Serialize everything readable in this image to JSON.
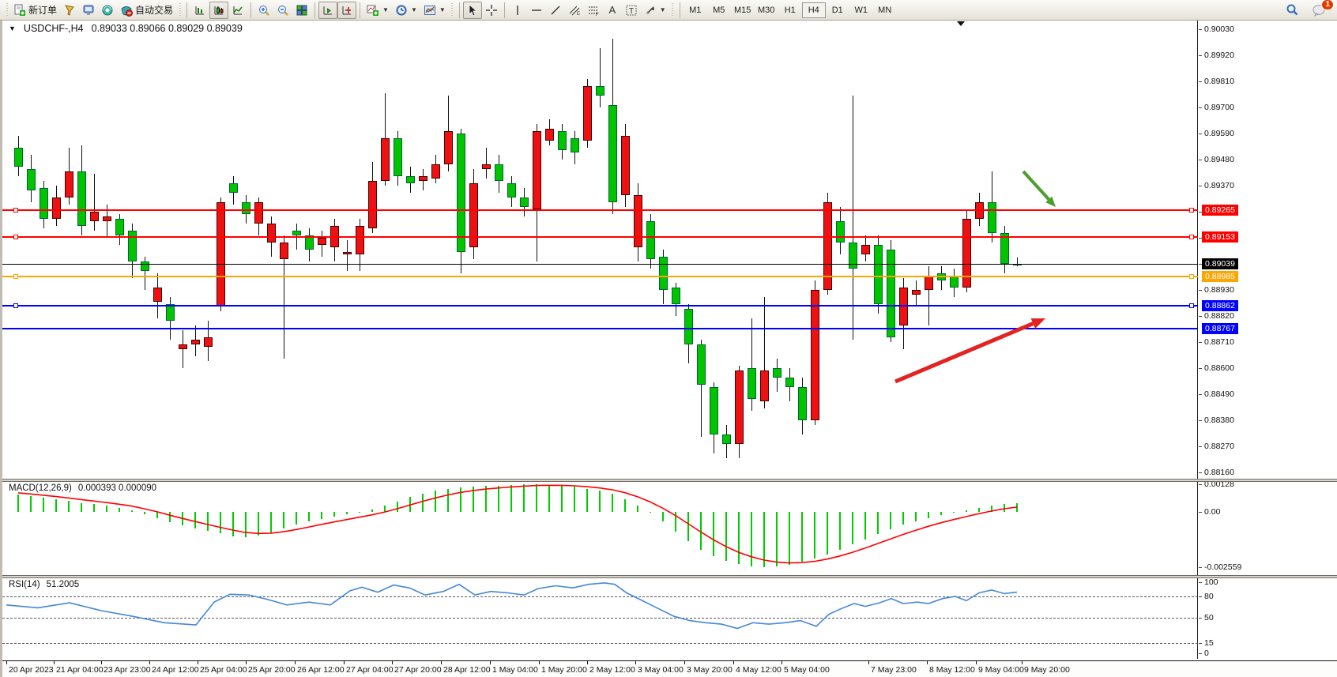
{
  "toolbar": {
    "new_order_label": "新订单",
    "auto_trading_label": "自动交易",
    "timeframes": [
      "M1",
      "M5",
      "M15",
      "M30",
      "H1",
      "H4",
      "D1",
      "W1",
      "MN"
    ],
    "active_timeframe": "H4",
    "notification_count": "1"
  },
  "chart": {
    "symbol_period": "USDCHF-,H4",
    "ohlc_text": "0.89033 0.89066 0.89029 0.89039"
  },
  "macd": {
    "label": "MACD(12,26,9)",
    "values_text": "0.000393 0.000090",
    "axis_labels": [
      "0.00128",
      "0.00",
      "-0.002559"
    ]
  },
  "rsi": {
    "label": "RSI(14)",
    "value_text": "51.2005",
    "axis_labels": [
      "100",
      "80",
      "50",
      "15",
      "0"
    ]
  },
  "chart_data": {
    "type": "candlestick",
    "title": "USDCHF-,H4",
    "ohlc_display": {
      "open": 0.89033,
      "high": 0.89066,
      "low": 0.89029,
      "close": 0.89039
    },
    "colors": {
      "bull": "#00c400",
      "bear": "#ee1111",
      "wick": "#111111",
      "macd_hist": "#00cc00",
      "macd_signal": "#ff0000",
      "rsi_line": "#4687d8",
      "arrow_green": "#4a9e2d",
      "arrow_red": "#e32222"
    },
    "price_ticks": [
      0.9003,
      0.8992,
      0.8981,
      0.897,
      0.8959,
      0.8948,
      0.8937,
      0.8926,
      0.8915,
      0.8904,
      0.8893,
      0.8882,
      0.8871,
      0.886,
      0.8849,
      0.8838,
      0.8827,
      0.8816
    ],
    "hlines": [
      {
        "price": 0.89265,
        "label": "0.89265",
        "color": "#ff0000",
        "thick": 2,
        "marker": true
      },
      {
        "price": 0.89153,
        "label": "0.89153",
        "color": "#ff0000",
        "thick": 2,
        "marker": true
      },
      {
        "price": 0.89039,
        "label": "0.89039",
        "color": "#000000",
        "thick": 1,
        "marker": false
      },
      {
        "price": 0.88985,
        "label": "0.88985",
        "color": "#ffa500",
        "thick": 2,
        "marker": true
      },
      {
        "price": 0.88862,
        "label": "0.88862",
        "color": "#0000ff",
        "thick": 2,
        "marker": true
      },
      {
        "price": 0.88767,
        "label": "0.88767",
        "color": "#0000ff",
        "thick": 2,
        "marker": false
      }
    ],
    "time_labels": [
      [
        "20 Apr 2023",
        5
      ],
      [
        "21 Apr 04:00",
        65
      ],
      [
        "23 Apr 23:00",
        125
      ],
      [
        "24 Apr 12:00",
        186
      ],
      [
        "25 Apr 04:00",
        247
      ],
      [
        "25 Apr 20:00",
        308
      ],
      [
        "26 Apr 12:00",
        370
      ],
      [
        "27 Apr 04:00",
        432
      ],
      [
        "27 Apr 20:00",
        493
      ],
      [
        "28 Apr 12:00",
        555
      ],
      [
        "1 May 04:00",
        617
      ],
      [
        "1 May 20:00",
        679
      ],
      [
        "2 May 12:00",
        740
      ],
      [
        "3 May 04:00",
        801
      ],
      [
        "3 May 20:00",
        863
      ],
      [
        "4 May 12:00",
        925
      ],
      [
        "5 May 04:00",
        986
      ],
      [
        "7 May 23:00",
        1096
      ],
      [
        "8 May 12:00",
        1170
      ],
      [
        "9 May 04:00",
        1232
      ],
      [
        "9 May 20:00",
        1290
      ]
    ],
    "candles": [
      [
        0.8945,
        0.8958,
        0.8941,
        0.8953
      ],
      [
        0.8935,
        0.895,
        0.893,
        0.8944
      ],
      [
        0.8923,
        0.8939,
        0.8919,
        0.8936
      ],
      [
        0.8932,
        0.8937,
        0.892,
        0.8923
      ],
      [
        0.8943,
        0.8953,
        0.8929,
        0.8932
      ],
      [
        0.892,
        0.8954,
        0.8916,
        0.8943
      ],
      [
        0.8926,
        0.8942,
        0.8918,
        0.8922
      ],
      [
        0.8924,
        0.8929,
        0.8915,
        0.8922
      ],
      [
        0.8916,
        0.8925,
        0.8912,
        0.8923
      ],
      [
        0.8905,
        0.8921,
        0.8898,
        0.8918
      ],
      [
        0.8901,
        0.8907,
        0.8893,
        0.8905
      ],
      [
        0.8894,
        0.89,
        0.8881,
        0.8888
      ],
      [
        0.888,
        0.889,
        0.8872,
        0.8887
      ],
      [
        0.887,
        0.8876,
        0.886,
        0.8868
      ],
      [
        0.8872,
        0.8878,
        0.8865,
        0.887
      ],
      [
        0.8873,
        0.888,
        0.8863,
        0.8869
      ],
      [
        0.893,
        0.8932,
        0.8884,
        0.8886
      ],
      [
        0.8934,
        0.8941,
        0.8929,
        0.8938
      ],
      [
        0.8925,
        0.8933,
        0.8921,
        0.893
      ],
      [
        0.893,
        0.8932,
        0.8916,
        0.8921
      ],
      [
        0.8921,
        0.8924,
        0.8907,
        0.8913
      ],
      [
        0.8913,
        0.8916,
        0.8864,
        0.8906
      ],
      [
        0.8916,
        0.8921,
        0.891,
        0.8918
      ],
      [
        0.891,
        0.8919,
        0.8905,
        0.8916
      ],
      [
        0.8915,
        0.8918,
        0.8907,
        0.8912
      ],
      [
        0.892,
        0.8923,
        0.8905,
        0.8911
      ],
      [
        0.8909,
        0.8914,
        0.8901,
        0.8908
      ],
      [
        0.892,
        0.8923,
        0.8901,
        0.8908
      ],
      [
        0.8939,
        0.8947,
        0.8917,
        0.8919
      ],
      [
        0.8957,
        0.8976,
        0.8937,
        0.8939
      ],
      [
        0.8941,
        0.896,
        0.8937,
        0.8957
      ],
      [
        0.8938,
        0.8945,
        0.8934,
        0.8941
      ],
      [
        0.8941,
        0.8944,
        0.8935,
        0.8939
      ],
      [
        0.8946,
        0.895,
        0.8938,
        0.894
      ],
      [
        0.896,
        0.8975,
        0.8943,
        0.8946
      ],
      [
        0.8909,
        0.8961,
        0.89,
        0.8959
      ],
      [
        0.8938,
        0.8944,
        0.8906,
        0.8911
      ],
      [
        0.8946,
        0.8953,
        0.894,
        0.8944
      ],
      [
        0.8939,
        0.895,
        0.8934,
        0.8946
      ],
      [
        0.8932,
        0.8941,
        0.8928,
        0.8938
      ],
      [
        0.8928,
        0.8936,
        0.8924,
        0.8932
      ],
      [
        0.896,
        0.8963,
        0.8905,
        0.8927
      ],
      [
        0.8961,
        0.8965,
        0.8954,
        0.8956
      ],
      [
        0.8952,
        0.8963,
        0.8948,
        0.896
      ],
      [
        0.8951,
        0.896,
        0.8946,
        0.8957
      ],
      [
        0.8979,
        0.8982,
        0.8953,
        0.8956
      ],
      [
        0.8975,
        0.8995,
        0.897,
        0.8979
      ],
      [
        0.893,
        0.8999,
        0.8925,
        0.8971
      ],
      [
        0.8958,
        0.8963,
        0.8928,
        0.8933
      ],
      [
        0.8933,
        0.8938,
        0.8905,
        0.8911
      ],
      [
        0.8906,
        0.8925,
        0.8902,
        0.8922
      ],
      [
        0.8893,
        0.891,
        0.8887,
        0.8907
      ],
      [
        0.8887,
        0.8896,
        0.8882,
        0.8894
      ],
      [
        0.887,
        0.8887,
        0.8862,
        0.8885
      ],
      [
        0.8853,
        0.8872,
        0.8831,
        0.887
      ],
      [
        0.8832,
        0.8854,
        0.8824,
        0.8852
      ],
      [
        0.8828,
        0.8836,
        0.8822,
        0.8832
      ],
      [
        0.8859,
        0.8861,
        0.8822,
        0.8828
      ],
      [
        0.8847,
        0.8881,
        0.8842,
        0.886
      ],
      [
        0.8859,
        0.889,
        0.8843,
        0.8846
      ],
      [
        0.8856,
        0.8864,
        0.885,
        0.886
      ],
      [
        0.8852,
        0.886,
        0.8846,
        0.8856
      ],
      [
        0.8838,
        0.8856,
        0.8832,
        0.8852
      ],
      [
        0.8893,
        0.8897,
        0.8836,
        0.8838
      ],
      [
        0.893,
        0.8934,
        0.8891,
        0.8893
      ],
      [
        0.8913,
        0.8928,
        0.8908,
        0.8922
      ],
      [
        0.8902,
        0.8975,
        0.8872,
        0.8913
      ],
      [
        0.8912,
        0.8916,
        0.8905,
        0.8908
      ],
      [
        0.8887,
        0.8916,
        0.8883,
        0.8912
      ],
      [
        0.8873,
        0.8914,
        0.8871,
        0.891
      ],
      [
        0.8894,
        0.8898,
        0.8868,
        0.8878
      ],
      [
        0.8893,
        0.8897,
        0.8886,
        0.8891
      ],
      [
        0.8899,
        0.8903,
        0.8878,
        0.8893
      ],
      [
        0.8897,
        0.8903,
        0.8893,
        0.89
      ],
      [
        0.8894,
        0.8902,
        0.889,
        0.8899
      ],
      [
        0.8923,
        0.8927,
        0.8892,
        0.8894
      ],
      [
        0.893,
        0.8934,
        0.892,
        0.8923
      ],
      [
        0.8917,
        0.8943,
        0.8913,
        0.893
      ],
      [
        0.8904,
        0.892,
        0.89,
        0.8917
      ],
      [
        0.89033,
        0.89066,
        0.89029,
        0.89039
      ]
    ],
    "macd": {
      "histogram": [
        0.0008,
        0.00072,
        0.00065,
        0.00058,
        0.0005,
        0.00042,
        0.00035,
        0.00028,
        0.0002,
        8e-05,
        -0.00012,
        -0.0003,
        -0.00048,
        -0.00062,
        -0.00075,
        -0.00088,
        -0.001,
        -0.00112,
        -0.00118,
        -0.0011,
        -0.00095,
        -0.00078,
        -0.0006,
        -0.00045,
        -0.00032,
        -0.00022,
        -0.00012,
        -2e-05,
        0.0001,
        0.00028,
        0.00048,
        0.00068,
        0.00085,
        0.00098,
        0.00108,
        0.00115,
        0.00118,
        0.0012,
        0.00122,
        0.00125,
        0.00127,
        0.00128,
        0.00126,
        0.00122,
        0.00116,
        0.00108,
        0.00098,
        0.00085,
        0.0006,
        0.0003,
        -5e-05,
        -0.00045,
        -0.0009,
        -0.00135,
        -0.00175,
        -0.00205,
        -0.00228,
        -0.00243,
        -0.00252,
        -0.00256,
        -0.00252,
        -0.00244,
        -0.00232,
        -0.00216,
        -0.00196,
        -0.00174,
        -0.0015,
        -0.00126,
        -0.00102,
        -0.0008,
        -0.0006,
        -0.00043,
        -0.00028,
        -0.00015,
        -4e-05,
        8e-05,
        0.0002,
        0.0003,
        0.00037,
        0.000393
      ],
      "signal_last": 9e-05,
      "axis_max": 0.00128,
      "axis_min": -0.002559
    },
    "rsi": {
      "levels": [
        80,
        50,
        15
      ],
      "points": [
        [
          5,
          68
        ],
        [
          45,
          64
        ],
        [
          85,
          71
        ],
        [
          125,
          60
        ],
        [
          165,
          52
        ],
        [
          205,
          43
        ],
        [
          245,
          40
        ],
        [
          268,
          72
        ],
        [
          288,
          83
        ],
        [
          312,
          82
        ],
        [
          335,
          76
        ],
        [
          360,
          68
        ],
        [
          388,
          72
        ],
        [
          415,
          68
        ],
        [
          440,
          88
        ],
        [
          455,
          93
        ],
        [
          475,
          86
        ],
        [
          495,
          96
        ],
        [
          515,
          92
        ],
        [
          535,
          82
        ],
        [
          558,
          87
        ],
        [
          578,
          97
        ],
        [
          598,
          82
        ],
        [
          618,
          87
        ],
        [
          640,
          85
        ],
        [
          660,
          82
        ],
        [
          678,
          91
        ],
        [
          700,
          95
        ],
        [
          722,
          92
        ],
        [
          742,
          97
        ],
        [
          762,
          99
        ],
        [
          775,
          97
        ],
        [
          790,
          85
        ],
        [
          810,
          74
        ],
        [
          830,
          63
        ],
        [
          850,
          52
        ],
        [
          870,
          46
        ],
        [
          890,
          43
        ],
        [
          910,
          41
        ],
        [
          930,
          35
        ],
        [
          950,
          43
        ],
        [
          970,
          41
        ],
        [
          990,
          43
        ],
        [
          1010,
          46
        ],
        [
          1030,
          38
        ],
        [
          1046,
          55
        ],
        [
          1062,
          63
        ],
        [
          1078,
          70
        ],
        [
          1092,
          66
        ],
        [
          1110,
          71
        ],
        [
          1125,
          77
        ],
        [
          1140,
          70
        ],
        [
          1158,
          72
        ],
        [
          1172,
          70
        ],
        [
          1190,
          77
        ],
        [
          1206,
          80
        ],
        [
          1220,
          74
        ],
        [
          1236,
          85
        ],
        [
          1252,
          89
        ],
        [
          1268,
          84
        ],
        [
          1284,
          86
        ]
      ]
    },
    "annotations": [
      {
        "type": "arrow",
        "color": "green",
        "from": [
          1292,
          191
        ],
        "to": [
          1333,
          236
        ]
      },
      {
        "type": "arrow",
        "color": "red",
        "from": [
          1130,
          457
        ],
        "to": [
          1320,
          377
        ]
      }
    ]
  }
}
